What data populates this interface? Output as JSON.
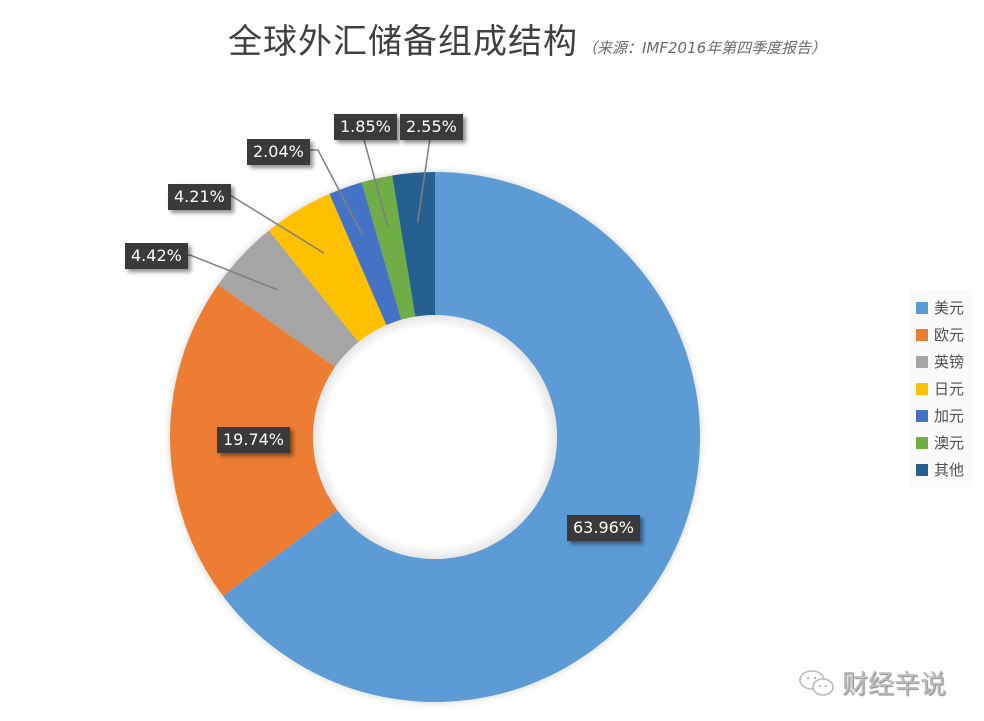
{
  "header": {
    "title": "全球外汇储备组成结构",
    "subtitle": "（来源：IMF2016年第四季度报告）"
  },
  "legend": {
    "items": [
      {
        "label": "美元",
        "color": "#5b9bd5"
      },
      {
        "label": "欧元",
        "color": "#ed7d31"
      },
      {
        "label": "英镑",
        "color": "#a5a5a5"
      },
      {
        "label": "日元",
        "color": "#ffc000"
      },
      {
        "label": "加元",
        "color": "#4472c4"
      },
      {
        "label": "澳元",
        "color": "#70ad47"
      },
      {
        "label": "其他",
        "color": "#255e91"
      }
    ]
  },
  "labels": {
    "usd": "63.96%",
    "eur": "19.74%",
    "gbp": "4.42%",
    "jpy": "4.21%",
    "cad": "2.04%",
    "aud": "1.85%",
    "other": "2.55%"
  },
  "watermark": {
    "text": "财经辛说",
    "icon": "wechat-icon"
  },
  "chart_data": {
    "type": "pie",
    "subtype": "donut",
    "title": "全球外汇储备组成结构",
    "subtitle": "（来源：IMF2016年第四季度报告）",
    "categories": [
      "美元",
      "欧元",
      "英镑",
      "日元",
      "加元",
      "澳元",
      "其他"
    ],
    "values": [
      63.96,
      19.74,
      4.42,
      4.21,
      2.04,
      1.85,
      2.55
    ],
    "unit": "%",
    "colors": [
      "#5b9bd5",
      "#ed7d31",
      "#a5a5a5",
      "#ffc000",
      "#4472c4",
      "#70ad47",
      "#255e91"
    ],
    "start_angle": "12 o'clock",
    "direction": "clockwise",
    "legend_position": "right",
    "data_labels": true
  }
}
